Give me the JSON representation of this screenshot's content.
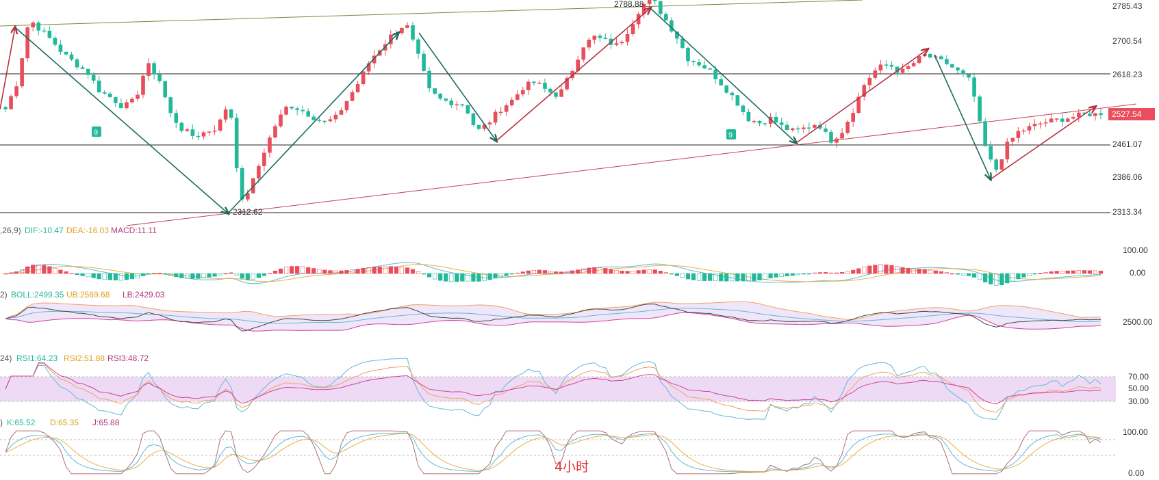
{
  "chart_data": {
    "type": "candlestick",
    "timeframe_label": "4小时",
    "colors": {
      "up": "#e84e5b",
      "down": "#22b89a",
      "trend_up": "#b5313f",
      "trend_down": "#1d6b5e",
      "support": "#c0424f",
      "channel_top": "#6b8f3a"
    },
    "price_axis": {
      "ticks": [
        "2785.43",
        "2700.54",
        "2618.23",
        "2461.07",
        "2386.06",
        "2313.34"
      ],
      "current_price": "2527.54",
      "range": [
        2295,
        2800
      ]
    },
    "price_annotations": {
      "high": "2788.88",
      "low": "2312.62"
    },
    "horizontal_levels": [
      2618.23,
      2461.07,
      2313.34
    ],
    "td_markers": [
      "9",
      "9"
    ],
    "close_path": [
      2540,
      2600,
      2740,
      2715,
      2690,
      2660,
      2640,
      2620,
      2580,
      2565,
      2545,
      2560,
      2640,
      2610,
      2530,
      2495,
      2480,
      2490,
      2500,
      2560,
      2330,
      2380,
      2450,
      2510,
      2550,
      2540,
      2525,
      2510,
      2520,
      2560,
      2600,
      2650,
      2680,
      2710,
      2730,
      2660,
      2580,
      2560,
      2555,
      2550,
      2490,
      2510,
      2540,
      2560,
      2590,
      2600,
      2580,
      2570,
      2620,
      2680,
      2700,
      2690,
      2680,
      2720,
      2770,
      2780,
      2740,
      2700,
      2650,
      2640,
      2620,
      2590,
      2560,
      2520,
      2510,
      2520,
      2500,
      2490,
      2500,
      2510,
      2470,
      2490,
      2540,
      2600,
      2630,
      2640,
      2620,
      2640,
      2660,
      2650,
      2640,
      2620,
      2600,
      2470,
      2400,
      2460,
      2490,
      2500,
      2510,
      2515,
      2520,
      2525,
      2530,
      2527.54
    ],
    "indicators": {
      "macd": {
        "prefix": ",26,9)",
        "dif": "DIF:-10.47",
        "dea": "DEA:-16.03",
        "macd": "MACD:11.11",
        "ticks": [
          "100.00",
          "0.00"
        ]
      },
      "boll": {
        "prefix": "2)",
        "boll": "BOLL:2499.35",
        "ub": "UB:2569.68",
        "lb": "LB:2429.03",
        "ticks": [
          "2500.00"
        ]
      },
      "rsi": {
        "prefix": "24)",
        "rsi1": "RSI1:64.23",
        "rsi2": "RSI2:51.88",
        "rsi3": "RSI3:48.72",
        "ticks": [
          "70.00",
          "50.00",
          "30.00"
        ]
      },
      "kdj": {
        "prefix": ")",
        "k": "K:65.52",
        "d": "D:65.35",
        "j": "J:65.88",
        "ticks": [
          "100.00",
          "0.00"
        ]
      }
    }
  }
}
